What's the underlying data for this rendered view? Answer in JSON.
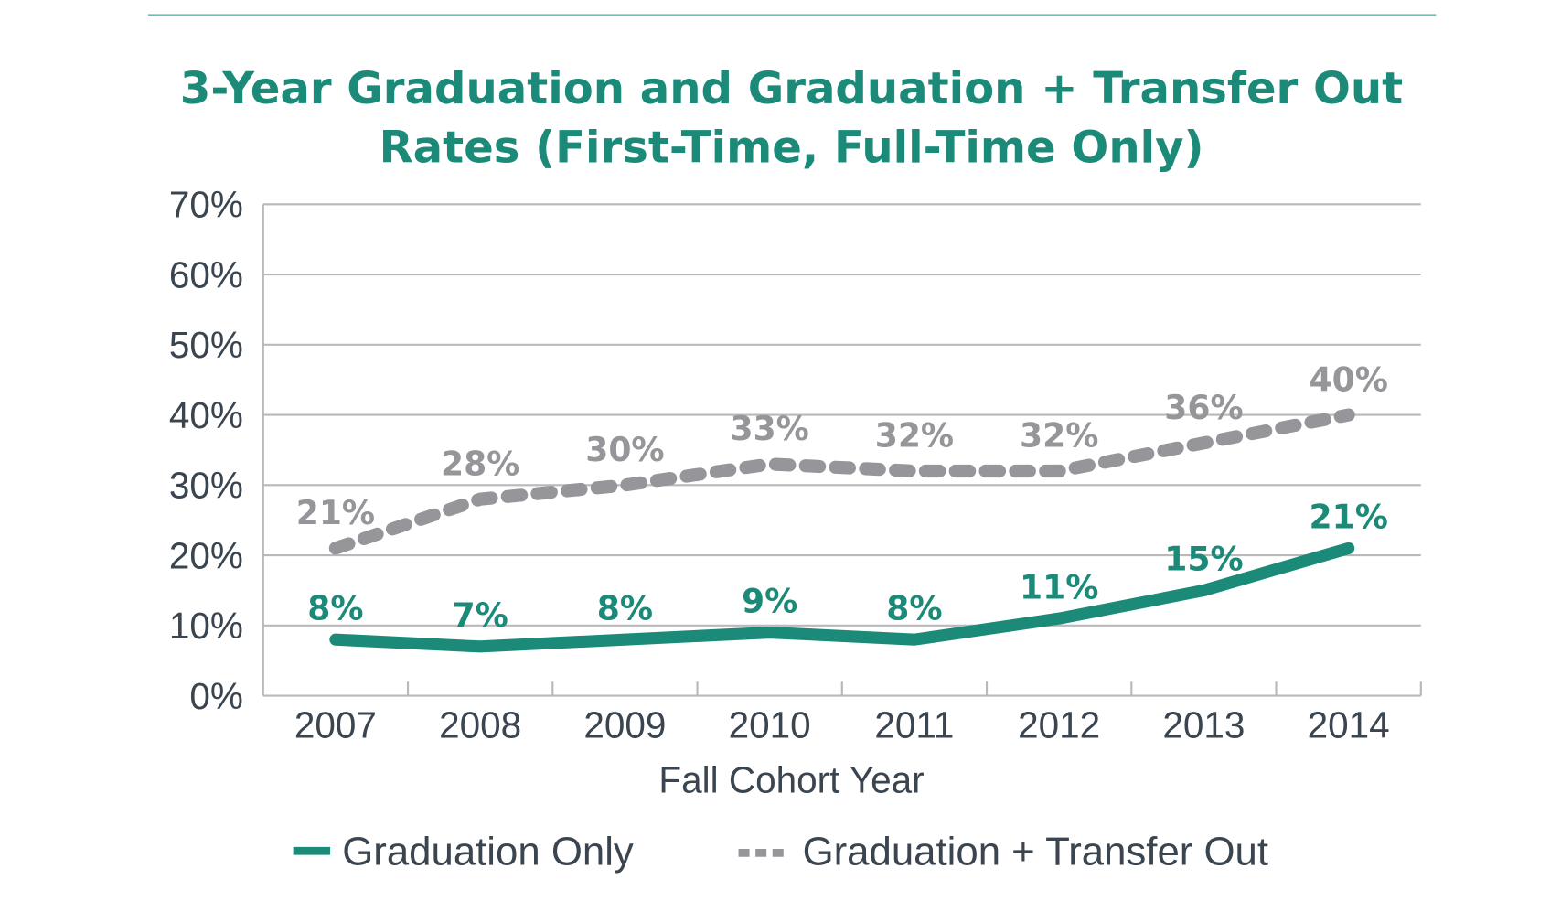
{
  "chart_data": {
    "type": "line",
    "title_lines": [
      "3-Year Graduation and Graduation + Transfer Out",
      "Rates (First-Time, Full-Time Only)"
    ],
    "xlabel": "Fall Cohort Year",
    "ylabel": "",
    "categories": [
      "2007",
      "2008",
      "2009",
      "2010",
      "2011",
      "2012",
      "2013",
      "2014"
    ],
    "ylim": [
      0,
      70
    ],
    "yticks": [
      0,
      10,
      20,
      30,
      40,
      50,
      60,
      70
    ],
    "ytick_labels": [
      "0%",
      "10%",
      "20%",
      "30%",
      "40%",
      "50%",
      "60%",
      "70%"
    ],
    "grid": true,
    "legend_position": "bottom",
    "series": [
      {
        "name": "Graduation Only",
        "values": [
          8,
          7,
          8,
          9,
          8,
          11,
          15,
          21
        ],
        "labels": [
          "8%",
          "7%",
          "8%",
          "9%",
          "8%",
          "11%",
          "15%",
          "21%"
        ],
        "color": "#1c8a78",
        "style": "solid"
      },
      {
        "name": "Graduation + Transfer Out",
        "values": [
          21,
          28,
          30,
          33,
          32,
          32,
          36,
          40
        ],
        "labels": [
          "21%",
          "28%",
          "30%",
          "33%",
          "32%",
          "32%",
          "36%",
          "40%"
        ],
        "color": "#96969a",
        "style": "dashed"
      }
    ]
  },
  "colors": {
    "accent": "#1c8a78",
    "rule": "#6fbfb0",
    "grid": "#b9b9bb",
    "text": "#3a4550"
  }
}
